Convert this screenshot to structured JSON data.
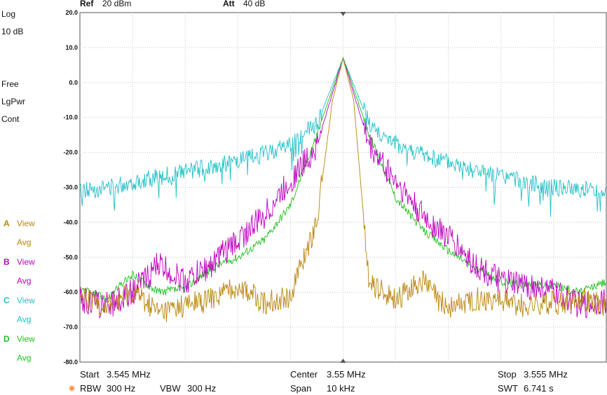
{
  "header": {
    "ref_label": "Ref",
    "ref_value": "20 dBm",
    "att_label": "Att",
    "att_value": "40 dB"
  },
  "side": {
    "scale_type": "Log",
    "scale_div": "10 dB",
    "trigger": "Free",
    "detector": "LgPwr",
    "sweep": "Cont"
  },
  "traces": [
    {
      "letter": "A",
      "mode": "View",
      "sub": "Avg",
      "color": "#b8860b"
    },
    {
      "letter": "B",
      "mode": "View",
      "sub": "Avg",
      "color": "#c000c0"
    },
    {
      "letter": "C",
      "mode": "View",
      "sub": "Avg",
      "color": "#20c0c8"
    },
    {
      "letter": "D",
      "mode": "View",
      "sub": "Avg",
      "color": "#20c020"
    }
  ],
  "footer": {
    "start_label": "Start",
    "start_value": "3.545 MHz",
    "center_label": "Center",
    "center_value": "3.55 MHz",
    "stop_label": "Stop",
    "stop_value": "3.555 MHz",
    "rbw_label": "RBW",
    "rbw_value": "300 Hz",
    "vbw_label": "VBW",
    "vbw_value": "300 Hz",
    "span_label": "Span",
    "span_value": "10 kHz",
    "swt_label": "SWT",
    "swt_value": "6.741 s",
    "rbw_marker_color": "#ff9040"
  },
  "chart_data": {
    "type": "line",
    "x_unit": "MHz",
    "x_range": [
      3.545,
      3.555
    ],
    "y_unit": "dBm",
    "ylim": [
      -80,
      20
    ],
    "y_ticks": [
      "20.0",
      "10.0",
      "0.0",
      "-10.0",
      "-20.0",
      "-30.0",
      "-40.0",
      "-50.0",
      "-60.0",
      "-70.0",
      "-80.0"
    ],
    "grid": true,
    "x_divisions": 10,
    "peak": {
      "x": 3.55,
      "y": 7
    },
    "series": [
      {
        "name": "A",
        "color": "#b8860b",
        "x": [
          3.545,
          3.5455,
          3.546,
          3.5465,
          3.547,
          3.5475,
          3.548,
          3.5485,
          3.549,
          3.5495,
          3.5498,
          3.55,
          3.5502,
          3.5505,
          3.551,
          3.5515,
          3.552,
          3.5525,
          3.553,
          3.5535,
          3.554,
          3.5545,
          3.555
        ],
        "y": [
          -62,
          -64,
          -60,
          -66,
          -64,
          -62,
          -58,
          -63,
          -61,
          -40,
          -5,
          7,
          -5,
          -58,
          -62,
          -57,
          -65,
          -62,
          -62,
          -64,
          -63,
          -62,
          -64
        ]
      },
      {
        "name": "B",
        "color": "#c000c0",
        "x": [
          3.545,
          3.5455,
          3.546,
          3.5465,
          3.547,
          3.5475,
          3.548,
          3.5485,
          3.549,
          3.5495,
          3.55,
          3.5505,
          3.551,
          3.5515,
          3.552,
          3.5525,
          3.553,
          3.5535,
          3.554,
          3.5545,
          3.555
        ],
        "y": [
          -62,
          -64,
          -60,
          -52,
          -57,
          -52,
          -45,
          -38,
          -28,
          -18,
          7,
          -18,
          -28,
          -38,
          -44,
          -52,
          -57,
          -58,
          -60,
          -64,
          -62
        ]
      },
      {
        "name": "C",
        "color": "#20c0c8",
        "x": [
          3.545,
          3.5455,
          3.546,
          3.5465,
          3.547,
          3.5475,
          3.548,
          3.5485,
          3.549,
          3.5495,
          3.55,
          3.5505,
          3.551,
          3.5515,
          3.552,
          3.5525,
          3.553,
          3.5535,
          3.554,
          3.5545,
          3.555
        ],
        "y": [
          -31,
          -30,
          -28.5,
          -27,
          -25.5,
          -24,
          -22.5,
          -20.5,
          -17.5,
          -12,
          7,
          -12,
          -17.5,
          -20.5,
          -23,
          -25,
          -27,
          -28.5,
          -30,
          -30.5,
          -31
        ]
      },
      {
        "name": "D",
        "color": "#20c020",
        "x": [
          3.545,
          3.5455,
          3.546,
          3.5465,
          3.547,
          3.5475,
          3.548,
          3.5485,
          3.549,
          3.5495,
          3.55,
          3.5505,
          3.551,
          3.5515,
          3.552,
          3.5525,
          3.553,
          3.5535,
          3.554,
          3.5545,
          3.555
        ],
        "y": [
          -59,
          -62,
          -55,
          -60,
          -59,
          -53,
          -50,
          -45,
          -35,
          -15,
          7,
          -15,
          -33,
          -42,
          -48,
          -53,
          -57,
          -58,
          -58,
          -60,
          -57
        ]
      }
    ]
  }
}
